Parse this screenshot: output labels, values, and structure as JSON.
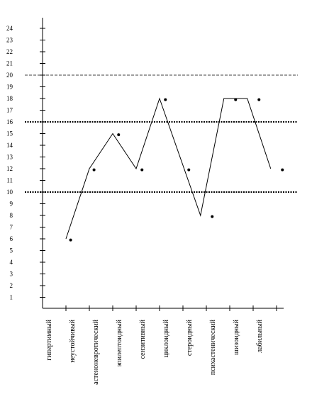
{
  "chart_data": {
    "type": "line",
    "title": "",
    "xlabel": "",
    "ylabel": "",
    "ylim": [
      0,
      25
    ],
    "y_tick_labels": [
      "1",
      "2",
      "3",
      "4",
      "5",
      "6",
      "7",
      "8",
      "9",
      "10",
      "11",
      "12",
      "13",
      "14",
      "15",
      "16",
      "17",
      "18",
      "19",
      "20",
      "21",
      "22",
      "23",
      "24"
    ],
    "categories": [
      "гипертимный",
      "неустойчивый",
      "астеноневротический",
      "эпилептоидный",
      "сензитивный",
      "циклоидный",
      "стероидный",
      "психастенический",
      "шизоидный",
      "лабильный"
    ],
    "series": [
      {
        "style": "line",
        "x": [
          1,
          2,
          3,
          4,
          5,
          6.75,
          7.75,
          8.75,
          9.75
        ],
        "y": [
          6,
          12,
          15,
          12,
          18,
          8,
          18,
          18,
          12
        ]
      },
      {
        "style": "points",
        "x": [
          1.2,
          2.2,
          3.25,
          4.25,
          5.25,
          6.25,
          7.25,
          8.25,
          9.25,
          10.25
        ],
        "y": [
          5.9,
          11.9,
          14.9,
          11.9,
          17.9,
          11.9,
          7.9,
          17.9,
          17.9,
          11.9
        ]
      }
    ],
    "reference_lines": [
      {
        "y": 10,
        "style": "dotted-bold"
      },
      {
        "y": 16,
        "style": "dotted-bold"
      },
      {
        "y": 20,
        "style": "thin-dashed"
      }
    ],
    "colors": {
      "line": "#000000",
      "axis": "#000000"
    }
  }
}
